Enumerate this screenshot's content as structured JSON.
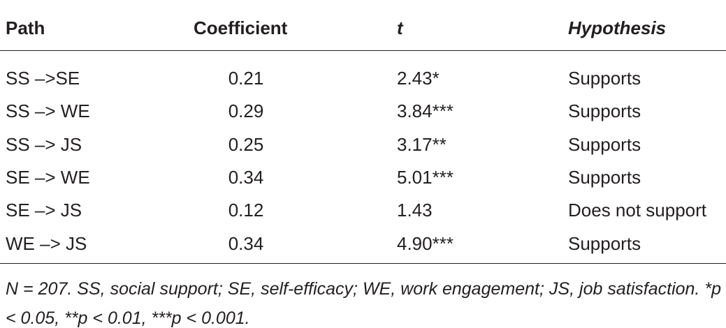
{
  "table": {
    "header": [
      "Path",
      "Coefficient",
      "t",
      "Hypothesis"
    ],
    "rows": [
      [
        "SS –>SE",
        "0.21",
        "2.43*",
        "Supports"
      ],
      [
        "SS –> WE",
        "0.29",
        "3.84***",
        "Supports"
      ],
      [
        "SS –> JS",
        "0.25",
        "3.17**",
        "Supports"
      ],
      [
        "SE –> WE",
        "0.34",
        "5.01***",
        "Supports"
      ],
      [
        "SE –> JS",
        "0.12",
        "1.43",
        "Does not support"
      ],
      [
        "WE –> JS",
        "0.34",
        "4.90***",
        "Supports"
      ]
    ],
    "footnote": "N = 207. SS, social support; SE, self-efficacy; WE, work engagement; JS, job satisfaction. *p < 0.05, **p < 0.01, ***p < 0.001."
  }
}
